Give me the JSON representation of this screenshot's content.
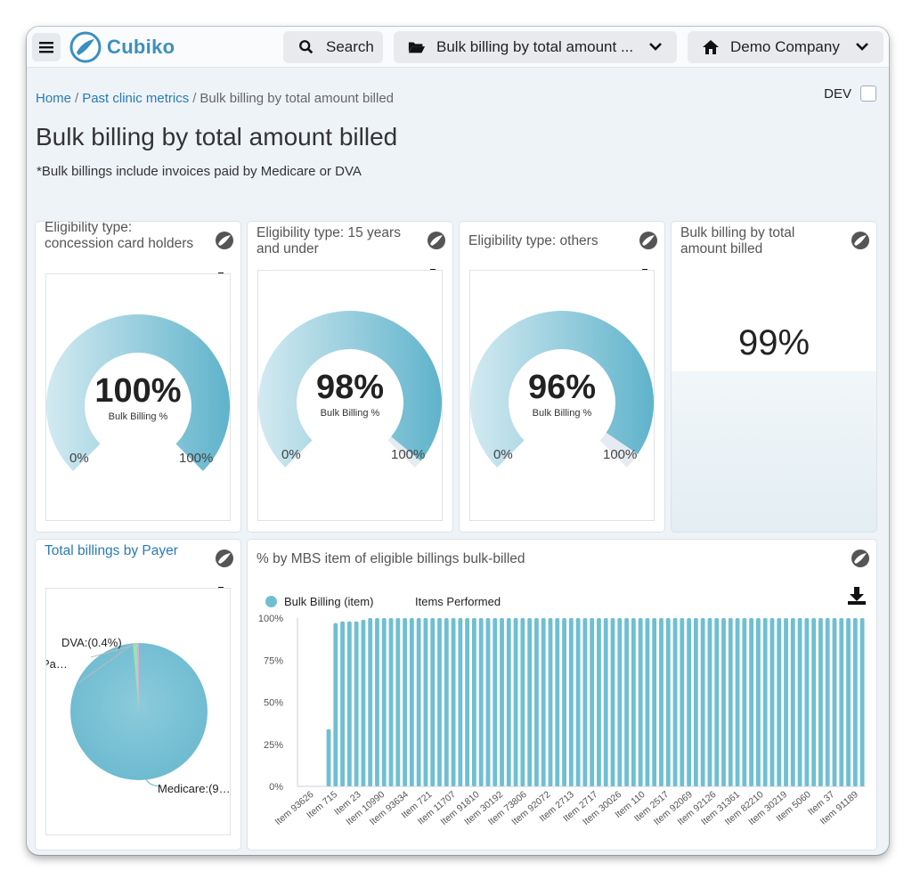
{
  "app": {
    "name": "Cubiko"
  },
  "topbar": {
    "search_label": "Search",
    "report_label": "Bulk billing by total amount ...",
    "company_label": "Demo Company"
  },
  "breadcrumb": {
    "home": "Home",
    "section": "Past clinic metrics",
    "current": "Bulk billing by total amount billed",
    "separator": "/"
  },
  "dev_toggle": {
    "label": "DEV",
    "checked": false
  },
  "page": {
    "title": "Bulk billing by total amount billed",
    "subtitle": "*Bulk billings include invoices paid by Medicare or DVA"
  },
  "gauges": [
    {
      "title": "Eligibility type: concession card holders",
      "value_text": "100%",
      "value": 100,
      "sub": "Bulk Billing %",
      "min": "0%",
      "max": "100%"
    },
    {
      "title": "Eligibility type: 15 years and under",
      "value_text": "98%",
      "value": 98,
      "sub": "Bulk Billing %",
      "min": "0%",
      "max": "100%"
    },
    {
      "title": "Eligibility type: others",
      "value_text": "96%",
      "value": 96,
      "sub": "Bulk Billing %",
      "min": "0%",
      "max": "100%"
    }
  ],
  "kpi": {
    "title": "Bulk billing by total amount billed",
    "value": "99%"
  },
  "pie": {
    "title": "Total billings by Payer",
    "labels": [
      "DVA:(0.4%)",
      "Pa…",
      "Medicare:(9…"
    ]
  },
  "bar": {
    "title": "% by MBS item of eligible billings bulk-billed",
    "legend_bulk": "Bulk Billing (item)",
    "legend_items": "Items Performed",
    "y_ticks": [
      "100%",
      "75%",
      "50%",
      "25%",
      "0%"
    ]
  },
  "colors": {
    "accent": "#2a7ab5",
    "bar": "#6fbfd3",
    "gauge": "#5fb3cb"
  },
  "chart_data": {
    "type": "bar",
    "ylim": [
      0,
      100
    ],
    "x_tick_labels": [
      "Item 93626",
      "Item 715",
      "Item 23",
      "Item 10990",
      "Item 93634",
      "Item 721",
      "Item 11707",
      "Item 91810",
      "Item 30192",
      "Item 73806",
      "Item 92072",
      "Item 2713",
      "Item 2717",
      "Item 30026",
      "Item 110",
      "Item 2517",
      "Item 92069",
      "Item 92126",
      "Item 31361",
      "Item 82210",
      "Item 30219",
      "Item 5060",
      "Item 37",
      "Item 91189"
    ],
    "values": [
      0,
      0,
      0,
      0,
      34,
      97,
      98,
      98,
      98,
      99,
      100,
      100,
      100,
      100,
      100,
      100,
      100,
      100,
      100,
      100,
      100,
      100,
      100,
      100,
      100,
      100,
      100,
      100,
      100,
      100,
      100,
      100,
      100,
      100,
      100,
      100,
      100,
      100,
      100,
      100,
      100,
      100,
      100,
      100,
      100,
      100,
      100,
      100,
      100,
      100,
      100,
      100,
      100,
      100,
      100,
      100,
      100,
      100,
      100,
      100,
      100,
      100,
      100,
      100,
      100,
      100,
      100,
      100,
      100,
      100,
      100,
      100,
      100,
      100,
      100,
      100,
      100,
      100,
      100,
      100,
      100,
      100
    ]
  }
}
